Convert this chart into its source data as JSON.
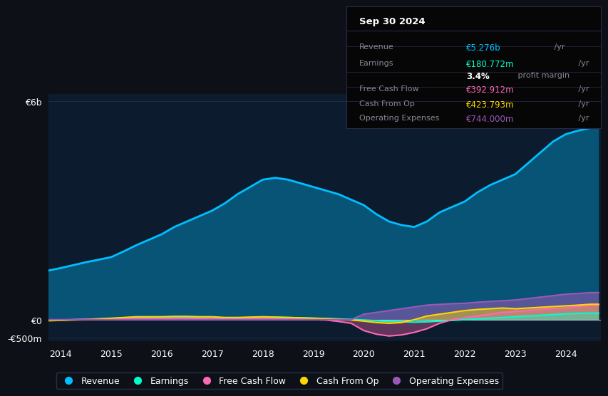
{
  "bg_color": "#0d1117",
  "plot_bg_color": "#0d1b2e",
  "years": [
    2013.75,
    2014,
    2014.25,
    2014.5,
    2014.75,
    2015,
    2015.25,
    2015.5,
    2015.75,
    2016,
    2016.25,
    2016.5,
    2016.75,
    2017,
    2017.25,
    2017.5,
    2017.75,
    2018,
    2018.25,
    2018.5,
    2018.75,
    2019,
    2019.25,
    2019.5,
    2019.75,
    2020,
    2020.25,
    2020.5,
    2020.75,
    2021,
    2021.25,
    2021.5,
    2021.75,
    2022,
    2022.25,
    2022.5,
    2022.75,
    2023,
    2023.25,
    2023.5,
    2023.75,
    2024,
    2024.25,
    2024.5,
    2024.65
  ],
  "revenue": [
    1.35,
    1.42,
    1.5,
    1.58,
    1.65,
    1.72,
    1.88,
    2.05,
    2.2,
    2.35,
    2.55,
    2.7,
    2.85,
    3.0,
    3.2,
    3.45,
    3.65,
    3.85,
    3.9,
    3.85,
    3.75,
    3.65,
    3.55,
    3.45,
    3.3,
    3.15,
    2.9,
    2.7,
    2.6,
    2.55,
    2.7,
    2.95,
    3.1,
    3.25,
    3.5,
    3.7,
    3.85,
    4.0,
    4.3,
    4.6,
    4.9,
    5.1,
    5.2,
    5.276,
    5.276
  ],
  "earnings": [
    -0.02,
    -0.01,
    0.0,
    0.01,
    0.02,
    0.03,
    0.04,
    0.05,
    0.06,
    0.07,
    0.07,
    0.06,
    0.05,
    0.04,
    0.04,
    0.05,
    0.06,
    0.07,
    0.07,
    0.06,
    0.05,
    0.04,
    0.03,
    0.02,
    0.01,
    -0.01,
    -0.03,
    -0.05,
    -0.06,
    -0.07,
    -0.06,
    -0.04,
    -0.02,
    0.0,
    0.02,
    0.04,
    0.06,
    0.08,
    0.1,
    0.12,
    0.14,
    0.16,
    0.175,
    0.1808,
    0.1808
  ],
  "free_cash_flow": [
    -0.02,
    -0.01,
    0.0,
    0.01,
    0.02,
    0.03,
    0.03,
    0.03,
    0.03,
    0.03,
    0.04,
    0.04,
    0.03,
    0.03,
    0.02,
    0.02,
    0.03,
    0.03,
    0.02,
    0.02,
    0.01,
    0.0,
    -0.01,
    -0.05,
    -0.1,
    -0.3,
    -0.4,
    -0.45,
    -0.42,
    -0.35,
    -0.25,
    -0.1,
    0.0,
    0.05,
    0.1,
    0.15,
    0.2,
    0.22,
    0.25,
    0.28,
    0.3,
    0.32,
    0.36,
    0.393,
    0.393
  ],
  "cash_from_op": [
    -0.03,
    -0.02,
    -0.01,
    0.0,
    0.02,
    0.04,
    0.06,
    0.08,
    0.08,
    0.08,
    0.09,
    0.09,
    0.08,
    0.08,
    0.06,
    0.06,
    0.07,
    0.08,
    0.07,
    0.06,
    0.05,
    0.04,
    0.03,
    0.01,
    -0.01,
    -0.04,
    -0.08,
    -0.1,
    -0.08,
    0.0,
    0.1,
    0.15,
    0.2,
    0.25,
    0.28,
    0.3,
    0.32,
    0.3,
    0.32,
    0.34,
    0.36,
    0.38,
    0.4,
    0.424,
    0.424
  ],
  "operating_expenses": [
    0.0,
    0.0,
    0.0,
    0.0,
    0.0,
    0.0,
    0.0,
    0.0,
    0.0,
    0.0,
    0.0,
    0.0,
    0.0,
    0.0,
    0.0,
    0.0,
    0.0,
    0.0,
    0.0,
    0.0,
    0.0,
    0.0,
    0.0,
    0.0,
    0.0,
    0.15,
    0.2,
    0.25,
    0.3,
    0.35,
    0.4,
    0.42,
    0.44,
    0.45,
    0.48,
    0.5,
    0.52,
    0.54,
    0.58,
    0.62,
    0.66,
    0.7,
    0.72,
    0.744,
    0.744
  ],
  "revenue_color": "#00bfff",
  "earnings_color": "#00ffcc",
  "fcf_color": "#ff69b4",
  "cashop_color": "#ffd700",
  "opex_color": "#9b59b6",
  "xlim": [
    2013.75,
    2024.7
  ],
  "ylim": [
    -0.6,
    6.2
  ],
  "yticks": [
    -0.5,
    0.0,
    6.0
  ],
  "ytick_labels": [
    "-€500m",
    "€0",
    "€6b"
  ],
  "xticks": [
    2014,
    2015,
    2016,
    2017,
    2018,
    2019,
    2020,
    2021,
    2022,
    2023,
    2024
  ],
  "legend_items": [
    "Revenue",
    "Earnings",
    "Free Cash Flow",
    "Cash From Op",
    "Operating Expenses"
  ],
  "info_box": {
    "title": "Sep 30 2024",
    "rows": [
      {
        "label": "Revenue",
        "value": "€5.276b",
        "color": "#00bfff",
        "suffix": " /yr"
      },
      {
        "label": "Earnings",
        "value": "€180.772m",
        "color": "#00ffcc",
        "suffix": " /yr"
      },
      {
        "label": "",
        "value": "3.4%",
        "color": "#ffffff",
        "suffix": " profit margin",
        "bold_value": true
      },
      {
        "label": "Free Cash Flow",
        "value": "€392.912m",
        "color": "#ff69b4",
        "suffix": " /yr"
      },
      {
        "label": "Cash From Op",
        "value": "€423.793m",
        "color": "#ffd700",
        "suffix": " /yr"
      },
      {
        "label": "Operating Expenses",
        "value": "€744.000m",
        "color": "#9b59b6",
        "suffix": " /yr"
      }
    ]
  }
}
